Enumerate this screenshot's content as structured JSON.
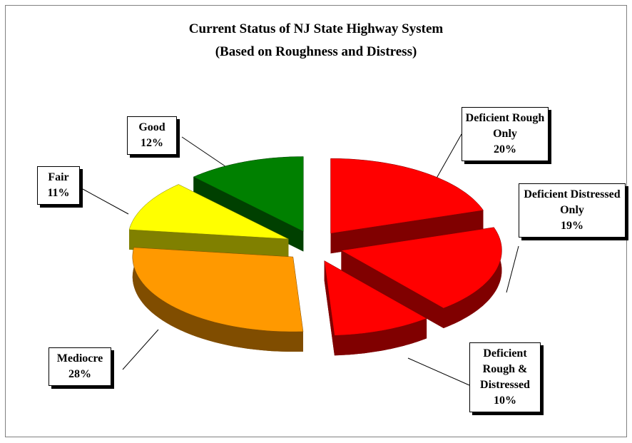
{
  "chart_data": {
    "type": "pie",
    "title": "Current Status of NJ State Highway System",
    "subtitle": "(Based on Roughness and Distress)",
    "categories": [
      "Deficient Rough Only",
      "Deficient Distressed Only",
      "Deficient Rough & Distressed",
      "Mediocre",
      "Fair",
      "Good"
    ],
    "values": [
      20,
      19,
      10,
      28,
      11,
      12
    ],
    "value_labels": [
      "20%",
      "19%",
      "10%",
      "28%",
      "11%",
      "12%"
    ],
    "colors": [
      "#ff0000",
      "#ff0000",
      "#ff0000",
      "#ff9900",
      "#ffff00",
      "#008000"
    ]
  }
}
